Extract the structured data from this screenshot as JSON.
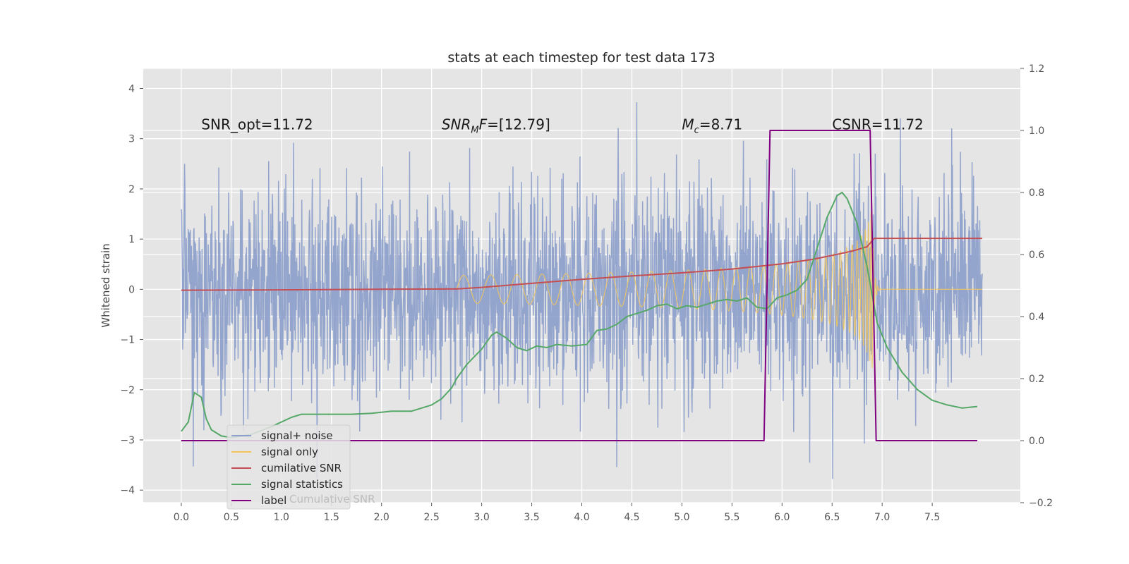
{
  "chart_data": {
    "type": "line",
    "title": "stats at each timestep for test data 173",
    "ylabel": "Whitened strain",
    "xlim": [
      -0.38,
      8.38
    ],
    "ylim": [
      -4.25,
      4.4
    ],
    "y2lim": [
      -0.2,
      1.2
    ],
    "x_ticks": [
      "0.0",
      "0.5",
      "1.0",
      "1.5",
      "2.0",
      "2.5",
      "3.0",
      "3.5",
      "4.0",
      "4.5",
      "5.0",
      "5.5",
      "6.0",
      "6.5",
      "7.0",
      "7.5"
    ],
    "y_ticks": [
      "4",
      "3",
      "2",
      "1",
      "0",
      "−1",
      "−2",
      "−3",
      "−4"
    ],
    "y2_ticks": [
      "1.2",
      "1.0",
      "0.8",
      "0.6",
      "0.4",
      "0.2",
      "0.0",
      "−0.2"
    ],
    "annotations": [
      {
        "text": "SNR_opt=11.72",
        "x": 0.2,
        "y": 3.3
      },
      {
        "text": "SNR_MF=[12.79]",
        "x": 2.6,
        "y": 3.3,
        "math": "snrmf"
      },
      {
        "text": "M_c=8.71",
        "x": 5.0,
        "y": 3.3,
        "math": "mc"
      },
      {
        "text": "CSNR=11.72",
        "x": 6.5,
        "y": 3.3
      }
    ],
    "legend_position": "lower-left",
    "legend": [
      "signal+ noise",
      "signal only",
      "cumilative SNR",
      "signal statistics",
      "label"
    ],
    "legend_ghost_text": "Cumulative SNR",
    "grid": true,
    "series": [
      {
        "name": "signal+ noise",
        "axis": "left",
        "color": "#8da0cb",
        "kind": "noise",
        "t_start": 0.0,
        "t_end": 8.0,
        "sigma": 1.0,
        "approx_range": [
          -3.85,
          4.05
        ]
      },
      {
        "name": "signal only",
        "axis": "left",
        "color": "#f2c55c",
        "kind": "chirp",
        "t_start": 2.75,
        "t_merge": 6.9,
        "t_end": 8.0,
        "peak_amplitude": 1.65
      },
      {
        "name": "cumilative SNR",
        "axis": "right",
        "color": "#c44e52",
        "x": [
          0.0,
          1.0,
          2.0,
          2.75,
          3.0,
          3.5,
          4.0,
          4.5,
          5.0,
          5.5,
          6.0,
          6.3,
          6.5,
          6.7,
          6.85,
          6.92,
          7.0,
          8.0
        ],
        "y": [
          0.485,
          0.486,
          0.488,
          0.489,
          0.494,
          0.507,
          0.52,
          0.531,
          0.541,
          0.553,
          0.57,
          0.584,
          0.597,
          0.611,
          0.625,
          0.652,
          0.652,
          0.652
        ]
      },
      {
        "name": "signal statistics",
        "axis": "right",
        "color": "#55a868",
        "x": [
          0.0,
          0.07,
          0.13,
          0.2,
          0.25,
          0.3,
          0.4,
          0.5,
          0.7,
          0.9,
          1.1,
          1.2,
          1.3,
          1.5,
          1.7,
          1.9,
          2.1,
          2.3,
          2.5,
          2.6,
          2.7,
          2.75,
          2.85,
          3.0,
          3.1,
          3.15,
          3.25,
          3.35,
          3.45,
          3.55,
          3.65,
          3.75,
          3.9,
          4.05,
          4.15,
          4.25,
          4.35,
          4.45,
          4.55,
          4.65,
          4.75,
          4.85,
          4.95,
          5.05,
          5.15,
          5.25,
          5.35,
          5.45,
          5.55,
          5.65,
          5.75,
          5.85,
          5.95,
          6.05,
          6.15,
          6.25,
          6.35,
          6.45,
          6.55,
          6.6,
          6.65,
          6.75,
          6.85,
          6.95,
          7.05,
          7.2,
          7.35,
          7.5,
          7.65,
          7.8,
          7.95
        ],
        "y": [
          0.03,
          0.06,
          0.155,
          0.14,
          0.07,
          0.035,
          0.015,
          0.01,
          0.02,
          0.045,
          0.075,
          0.085,
          0.085,
          0.085,
          0.085,
          0.088,
          0.095,
          0.095,
          0.115,
          0.135,
          0.17,
          0.2,
          0.245,
          0.295,
          0.34,
          0.35,
          0.33,
          0.3,
          0.29,
          0.305,
          0.3,
          0.31,
          0.305,
          0.31,
          0.355,
          0.36,
          0.375,
          0.4,
          0.41,
          0.42,
          0.435,
          0.44,
          0.425,
          0.435,
          0.43,
          0.44,
          0.45,
          0.455,
          0.45,
          0.46,
          0.43,
          0.425,
          0.46,
          0.47,
          0.485,
          0.52,
          0.62,
          0.72,
          0.79,
          0.8,
          0.78,
          0.7,
          0.56,
          0.38,
          0.3,
          0.22,
          0.165,
          0.13,
          0.115,
          0.105,
          0.11
        ]
      },
      {
        "name": "label",
        "axis": "right",
        "color": "#800080",
        "x": [
          0.0,
          5.82,
          5.88,
          6.88,
          6.94,
          7.95
        ],
        "y": [
          0.0,
          0.0,
          1.0,
          1.0,
          0.0,
          0.0
        ]
      }
    ]
  }
}
